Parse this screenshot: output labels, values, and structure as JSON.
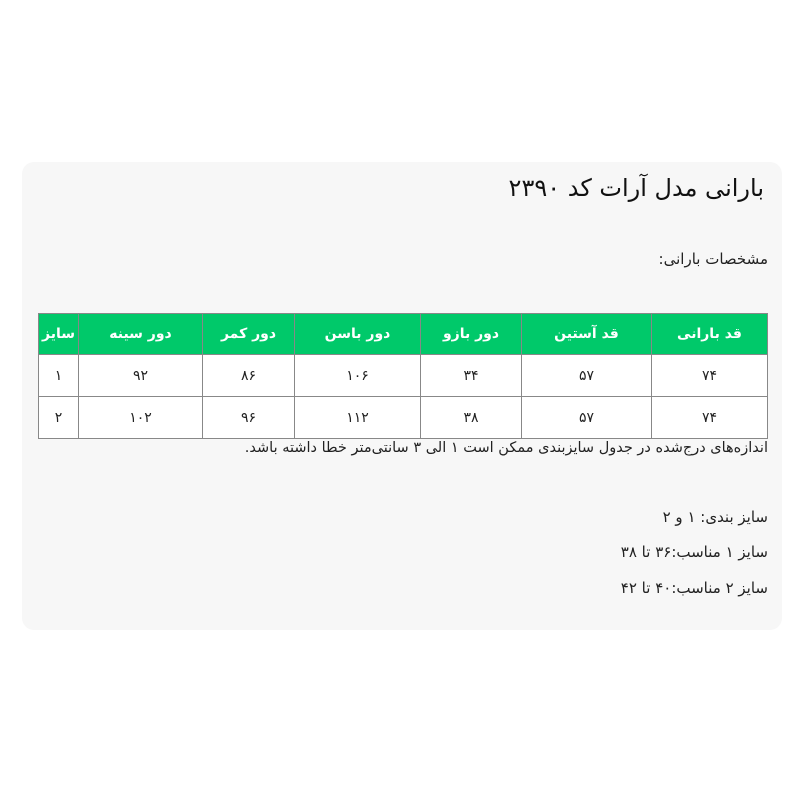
{
  "close_label": "×",
  "title": "بارانی مدل آرات کد ۲۳۹۰",
  "subtitle": "مشخصات بارانی:",
  "table": {
    "headers": [
      "قد بارانی",
      "قد آستین",
      "دور بازو",
      "دور باسن",
      "دور کمر",
      "دور سینه",
      "سایز"
    ],
    "rows": [
      [
        "۷۴",
        "۵۷",
        "۳۴",
        "۱۰۶",
        "۸۶",
        "۹۲",
        "۱"
      ],
      [
        "۷۴",
        "۵۷",
        "۳۸",
        "۱۱۲",
        "۹۶",
        "۱۰۲",
        "۲"
      ]
    ]
  },
  "note": "اندازه‌های درج‌شده در جدول سایزبندی ممکن است ۱ الی ۳ سانتی‌متر خطا داشته باشد.",
  "info": [
    "سایز بندی: ۱ و ۲",
    "سایز ۱ مناسب:۳۶ تا ۳۸",
    "سایز ۲ مناسب:۴۰ تا ۴۲"
  ],
  "colors": {
    "header_bg": "#00c96a",
    "panel_bg": "#f7f7f7"
  }
}
